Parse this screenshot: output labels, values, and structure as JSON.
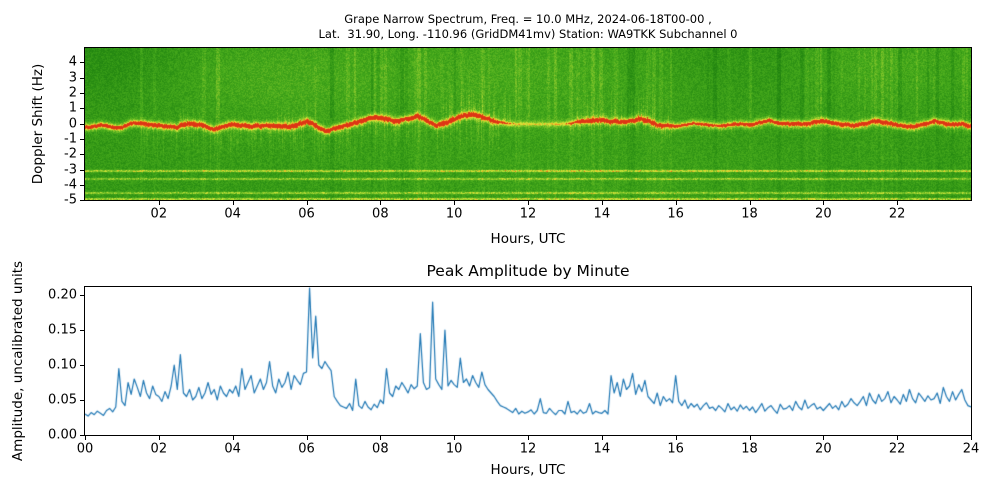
{
  "figure": {
    "title_line1": "Grape Narrow Spectrum, Freq. = 10.0 MHz, 2024-06-18T00-00 ,",
    "title_line2": "Lat.  31.90, Long. -110.96 (GridDM41mv) Station: WA9TKK Subchannel 0"
  },
  "panels": {
    "top": {
      "ylabel": "Doppler Shift (Hz)",
      "xlabel": "Hours, UTC",
      "yticks": [
        {
          "label": "4",
          "hz": 4
        },
        {
          "label": "3",
          "hz": 3
        },
        {
          "label": "2",
          "hz": 2
        },
        {
          "label": "1",
          "hz": 1
        },
        {
          "label": "0",
          "hz": 0
        },
        {
          "label": "-1",
          "hz": -1
        },
        {
          "label": "-2",
          "hz": -2
        },
        {
          "label": "-3",
          "hz": -3
        },
        {
          "label": "-4",
          "hz": -4
        },
        {
          "label": "-5",
          "hz": -5
        }
      ],
      "xticks": [
        {
          "label": "02",
          "hour": 2
        },
        {
          "label": "04",
          "hour": 4
        },
        {
          "label": "06",
          "hour": 6
        },
        {
          "label": "08",
          "hour": 8
        },
        {
          "label": "10",
          "hour": 10
        },
        {
          "label": "12",
          "hour": 12
        },
        {
          "label": "14",
          "hour": 14
        },
        {
          "label": "16",
          "hour": 16
        },
        {
          "label": "18",
          "hour": 18
        },
        {
          "label": "20",
          "hour": 20
        },
        {
          "label": "22",
          "hour": 22
        }
      ]
    },
    "bottom": {
      "title": "Peak Amplitude by Minute",
      "ylabel": "Amplitude, uncalibrated units",
      "xlabel": "Hours, UTC",
      "yticks": [
        {
          "label": "0.00",
          "value": 0.0
        },
        {
          "label": "0.05",
          "value": 0.05
        },
        {
          "label": "0.10",
          "value": 0.1
        },
        {
          "label": "0.15",
          "value": 0.15
        },
        {
          "label": "0.20",
          "value": 0.2
        }
      ],
      "xticks": [
        {
          "label": "00",
          "hour": 0
        },
        {
          "label": "02",
          "hour": 2
        },
        {
          "label": "04",
          "hour": 4
        },
        {
          "label": "06",
          "hour": 6
        },
        {
          "label": "08",
          "hour": 8
        },
        {
          "label": "10",
          "hour": 10
        },
        {
          "label": "12",
          "hour": 12
        },
        {
          "label": "14",
          "hour": 14
        },
        {
          "label": "16",
          "hour": 16
        },
        {
          "label": "18",
          "hour": 18
        },
        {
          "label": "20",
          "hour": 20
        },
        {
          "label": "22",
          "hour": 22
        },
        {
          "label": "24",
          "hour": 24
        }
      ]
    }
  },
  "colors": {
    "background": "#ffffff",
    "frame": "#000000",
    "text": "#000000",
    "amplitude_line": "#1f77b4"
  },
  "chart_data": [
    {
      "type": "heatmap",
      "title": "Grape Narrow Spectrum, Freq. = 10.0 MHz, 2024-06-18T00-00 , Lat. 31.90, Long. -110.96 (GridDM41mv) Station: WA9TKK Subchannel 0",
      "xlabel": "Hours, UTC",
      "ylabel": "Doppler Shift (Hz)",
      "x_range_hours": [
        0,
        24
      ],
      "y_range_hz": [
        -5.0,
        4.9
      ],
      "grid": false,
      "description": "Green noise spectrogram with a bright yellow/orange/red carrier trace wandering near 0 Hz, diffuse yellow-green doppler spread below/above the trace, faint bright patches of background, and thin horizontal yellow interference lines between -3 and -5 Hz. Trace fades to a faint flat line roughly 11.5-13.5 UTC.",
      "colormap_stops": [
        [
          0.0,
          "#0e6b0a"
        ],
        [
          0.3,
          "#2a8f13"
        ],
        [
          0.5,
          "#4aad1d"
        ],
        [
          0.68,
          "#8cc92c"
        ],
        [
          0.8,
          "#d8e83a"
        ],
        [
          0.88,
          "#f2c32b"
        ],
        [
          0.94,
          "#ef8820"
        ],
        [
          1.0,
          "#dd3515"
        ]
      ],
      "carrier_trace": {
        "hours_step": 0.5,
        "doppler_hz": [
          -0.1,
          0.0,
          -0.2,
          0.1,
          -0.1,
          -0.3,
          0.0,
          -0.2,
          0.1,
          -0.1,
          0.2,
          0.0,
          0.3,
          -0.2,
          0.0,
          0.2,
          0.4,
          0.2,
          0.5,
          0.1,
          0.4,
          0.6,
          0.3,
          0.0,
          0.0,
          0.0,
          0.0,
          0.1,
          0.2,
          0.1,
          0.3,
          0.0,
          -0.1,
          0.1,
          -0.2,
          0.0,
          -0.1,
          0.1,
          0.0,
          -0.1,
          0.1,
          0.0,
          -0.1,
          0.1,
          0.0,
          -0.1,
          0.1,
          0.0,
          -0.1
        ],
        "strength": [
          1,
          1,
          1,
          1,
          1,
          1,
          1,
          1,
          1,
          1,
          1,
          1,
          1,
          1,
          1,
          1,
          1,
          1,
          1,
          1,
          1,
          0.9,
          0.8,
          0.45,
          0.4,
          0.4,
          0.45,
          0.8,
          0.9,
          0.9,
          1,
          0.9,
          0.8,
          0.7,
          0.75,
          0.8,
          0.85,
          0.9,
          0.9,
          1,
          1,
          1,
          1,
          1,
          1,
          1,
          1,
          1,
          1
        ]
      },
      "interference_lines": [
        {
          "hz": -3.05,
          "intensity": 0.34
        },
        {
          "hz": -3.55,
          "intensity": 0.26
        },
        {
          "hz": -4.5,
          "intensity": 0.28
        },
        {
          "hz": -4.85,
          "intensity": 0.32
        }
      ],
      "bright_regions": [
        {
          "h": 11.0,
          "hz": 3.2,
          "sh": 4.5,
          "sf": 2.6,
          "a": 0.1
        },
        {
          "h": 21.8,
          "hz": 3.8,
          "sh": 2.2,
          "sf": 2.2,
          "a": 0.09
        },
        {
          "h": 4.8,
          "hz": 2.8,
          "sh": 2.0,
          "sf": 2.0,
          "a": 0.07
        },
        {
          "h": 13.5,
          "hz": -3.5,
          "sh": 5.0,
          "sf": 1.8,
          "a": 0.05
        },
        {
          "h": 0.6,
          "hz": 4.3,
          "sh": 1.4,
          "sf": 1.8,
          "a": -0.08
        },
        {
          "h": 17.8,
          "hz": 4.3,
          "sh": 1.6,
          "sf": 2.0,
          "a": -0.06
        }
      ],
      "doppler_spread_below_hours": [
        [
          1.5,
          11.2,
          1.0
        ],
        [
          13.0,
          16.0,
          0.55
        ],
        [
          16.5,
          24,
          0.3
        ]
      ],
      "doppler_spread_above_hours": [
        [
          2.5,
          3.2,
          0.4
        ],
        [
          5.2,
          6.3,
          0.6
        ],
        [
          9.6,
          11.6,
          1.0
        ],
        [
          13.3,
          15.8,
          0.7
        ]
      ]
    },
    {
      "type": "line",
      "title": "Peak Amplitude by Minute",
      "xlabel": "Hours, UTC",
      "ylabel": "Amplitude, uncalibrated units",
      "xlim": [
        0,
        24
      ],
      "ylim": [
        0,
        0.2114
      ],
      "grid": false,
      "legend": "none",
      "color": "#1f77b4",
      "x_start_hour": 0,
      "x_step_hours": 0.083333,
      "values": [
        0.03,
        0.027,
        0.032,
        0.029,
        0.034,
        0.031,
        0.028,
        0.035,
        0.038,
        0.033,
        0.04,
        0.095,
        0.048,
        0.042,
        0.075,
        0.058,
        0.08,
        0.068,
        0.055,
        0.078,
        0.06,
        0.052,
        0.07,
        0.058,
        0.055,
        0.048,
        0.062,
        0.052,
        0.07,
        0.1,
        0.065,
        0.115,
        0.06,
        0.055,
        0.065,
        0.05,
        0.055,
        0.068,
        0.052,
        0.06,
        0.075,
        0.058,
        0.065,
        0.05,
        0.07,
        0.06,
        0.055,
        0.065,
        0.06,
        0.07,
        0.055,
        0.095,
        0.065,
        0.075,
        0.085,
        0.06,
        0.07,
        0.08,
        0.065,
        0.075,
        0.105,
        0.07,
        0.06,
        0.08,
        0.068,
        0.075,
        0.09,
        0.065,
        0.085,
        0.078,
        0.072,
        0.088,
        0.09,
        0.21,
        0.11,
        0.17,
        0.1,
        0.095,
        0.105,
        0.098,
        0.092,
        0.055,
        0.048,
        0.042,
        0.04,
        0.038,
        0.045,
        0.035,
        0.08,
        0.042,
        0.038,
        0.048,
        0.04,
        0.036,
        0.044,
        0.039,
        0.05,
        0.045,
        0.095,
        0.06,
        0.055,
        0.07,
        0.065,
        0.075,
        0.068,
        0.06,
        0.072,
        0.066,
        0.07,
        0.145,
        0.075,
        0.065,
        0.068,
        0.19,
        0.08,
        0.072,
        0.065,
        0.15,
        0.07,
        0.078,
        0.072,
        0.068,
        0.11,
        0.075,
        0.08,
        0.07,
        0.085,
        0.075,
        0.068,
        0.09,
        0.072,
        0.065,
        0.06,
        0.055,
        0.048,
        0.042,
        0.04,
        0.038,
        0.035,
        0.032,
        0.038,
        0.03,
        0.034,
        0.031,
        0.033,
        0.036,
        0.03,
        0.035,
        0.052,
        0.032,
        0.031,
        0.038,
        0.033,
        0.029,
        0.035,
        0.035,
        0.03,
        0.048,
        0.032,
        0.034,
        0.03,
        0.036,
        0.031,
        0.033,
        0.045,
        0.03,
        0.034,
        0.032,
        0.031,
        0.035,
        0.03,
        0.085,
        0.06,
        0.075,
        0.055,
        0.08,
        0.065,
        0.07,
        0.088,
        0.058,
        0.072,
        0.062,
        0.078,
        0.055,
        0.05,
        0.045,
        0.06,
        0.042,
        0.055,
        0.048,
        0.052,
        0.046,
        0.085,
        0.048,
        0.042,
        0.05,
        0.038,
        0.045,
        0.04,
        0.044,
        0.036,
        0.042,
        0.046,
        0.038,
        0.04,
        0.035,
        0.042,
        0.038,
        0.033,
        0.045,
        0.036,
        0.04,
        0.034,
        0.043,
        0.037,
        0.041,
        0.035,
        0.04,
        0.032,
        0.038,
        0.045,
        0.034,
        0.039,
        0.042,
        0.036,
        0.031,
        0.044,
        0.037,
        0.038,
        0.042,
        0.035,
        0.048,
        0.04,
        0.036,
        0.05,
        0.038,
        0.042,
        0.045,
        0.037,
        0.04,
        0.035,
        0.04,
        0.045,
        0.038,
        0.042,
        0.036,
        0.048,
        0.04,
        0.044,
        0.052,
        0.046,
        0.042,
        0.048,
        0.055,
        0.042,
        0.06,
        0.05,
        0.045,
        0.058,
        0.048,
        0.052,
        0.062,
        0.046,
        0.055,
        0.05,
        0.044,
        0.058,
        0.048,
        0.065,
        0.052,
        0.046,
        0.06,
        0.054,
        0.048,
        0.056,
        0.05,
        0.052,
        0.06,
        0.045,
        0.068,
        0.055,
        0.048,
        0.062,
        0.05,
        0.058,
        0.065,
        0.05,
        0.042,
        0.04
      ]
    }
  ]
}
